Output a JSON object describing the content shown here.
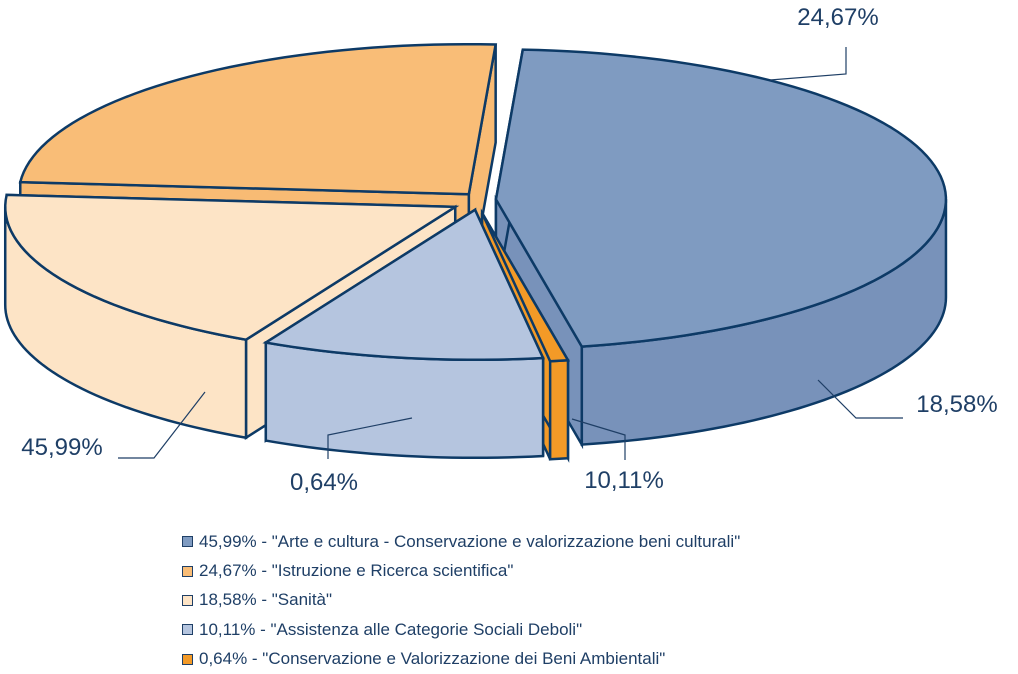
{
  "chart_data": {
    "type": "pie",
    "title": "",
    "style": "3d exploded pie",
    "slices": [
      {
        "value": 45.99,
        "label": "45,99%",
        "legend": "45,99% - \"Arte e cultura - Conservazione e valorizzazione beni culturali\"",
        "color": "#7f9bc1",
        "side_color": "#7892ba"
      },
      {
        "value": 24.67,
        "label": "24,67%",
        "legend": "24,67% - \"Istruzione e Ricerca scientifica\"",
        "color": "#f9bd77",
        "side_color": "#f8bb74"
      },
      {
        "value": 18.58,
        "label": "18,58%",
        "legend": "18,58% - \"Sanità\"",
        "color": "#fde4c6",
        "side_color": "#fde4c6"
      },
      {
        "value": 10.11,
        "label": "10,11%",
        "legend": "10,11% - \"Assistenza alle Categorie Sociali Deboli\"",
        "color": "#b5c5df",
        "side_color": "#b5c5df"
      },
      {
        "value": 0.64,
        "label": "0,64%",
        "legend": "0,64% - \"Conservazione e Valorizzazione dei Beni Ambientali\"",
        "color": "#f39a27",
        "side_color": "#f39a27"
      }
    ],
    "outline_color": "#0d3a66",
    "legend_placement": "bottom"
  }
}
